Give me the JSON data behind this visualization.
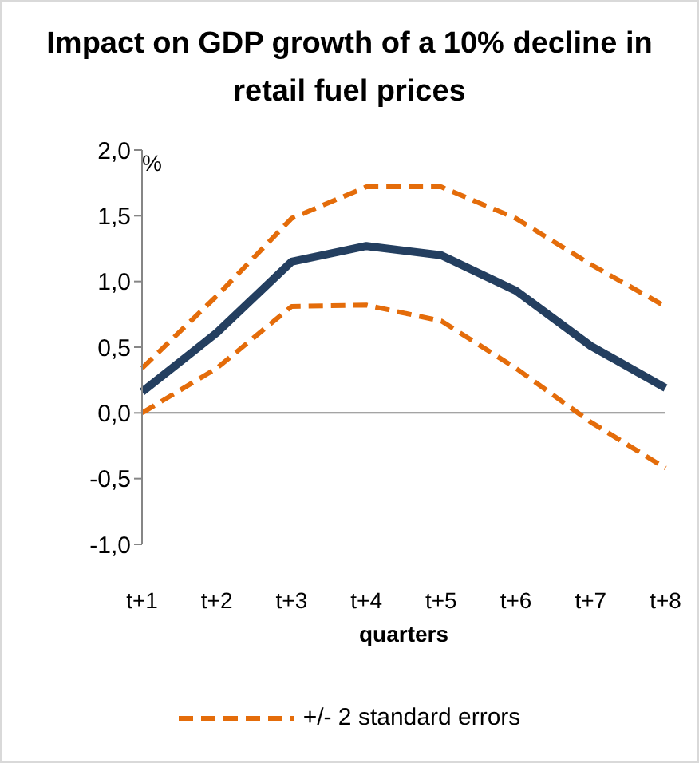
{
  "chart_data": {
    "type": "line",
    "title": "Impact on GDP growth of a 10% decline in retail fuel prices",
    "xlabel": "quarters",
    "ylabel": "%",
    "categories": [
      "t+1",
      "t+2",
      "t+3",
      "t+4",
      "t+5",
      "t+6",
      "t+7",
      "t+8"
    ],
    "series": [
      {
        "color": "#243f60",
        "values": [
          0.16,
          0.61,
          1.15,
          1.27,
          1.2,
          0.93,
          0.51,
          0.19
        ]
      },
      {
        "name": "+/- 2 standard errors",
        "color": "#e46c0a",
        "line_style": "dashed",
        "values": [
          0.34,
          0.89,
          1.48,
          1.72,
          1.72,
          1.48,
          1.13,
          0.81
        ]
      },
      {
        "color": "#e46c0a",
        "line_style": "dashed",
        "values": [
          0.0,
          0.34,
          0.81,
          0.82,
          0.7,
          0.34,
          -0.07,
          -0.42
        ]
      }
    ],
    "ylim": [
      -1.0,
      2.0
    ],
    "yticks": [
      {
        "value": -1,
        "label": "-1,0"
      },
      {
        "value": -0.5,
        "label": "-0,5"
      },
      {
        "value": 0,
        "label": "0,0"
      },
      {
        "value": 0.5,
        "label": "0,5"
      },
      {
        "value": 1,
        "label": "1,0"
      },
      {
        "value": 1.5,
        "label": "1,5"
      },
      {
        "value": 2,
        "label": "2,0"
      }
    ],
    "ref_lines": [
      {
        "axis": "y",
        "value": 0,
        "color": "#868686"
      }
    ],
    "legend": "bottom",
    "marker": "none",
    "line_style": "solid"
  }
}
